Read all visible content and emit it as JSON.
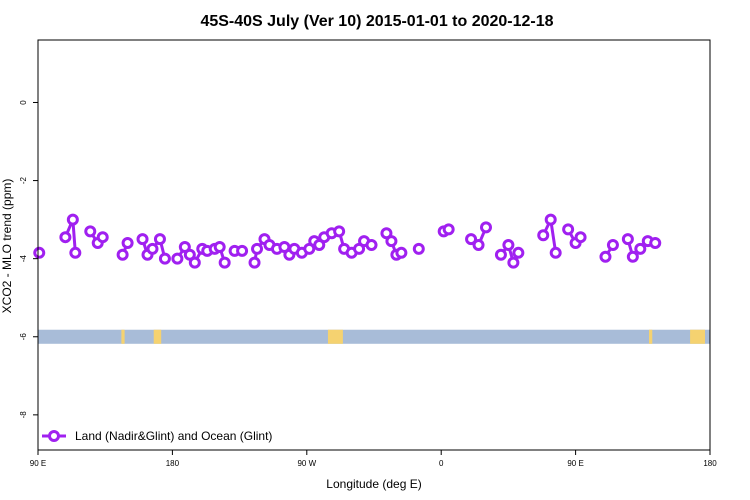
{
  "chart_data": {
    "type": "line",
    "title": "45S-40S July (Ver 10)   2015-01-01 to 2020-12-18",
    "xlabel": "Longitude (deg E)",
    "ylabel": "XCO2 - MLO trend (ppm)",
    "xlim": [
      -90,
      180
    ],
    "ylim": [
      -8.9,
      1.6
    ],
    "x_ticks": [
      -90,
      -36,
      18,
      72,
      126,
      180
    ],
    "x_tick_labels": [
      "90 E",
      "180",
      "90 W",
      "0",
      "90 E",
      "180"
    ],
    "y_ticks": [
      0,
      -2,
      -4,
      -6,
      -8
    ],
    "y_tick_labels": [
      "0",
      "-2",
      "-4",
      "-6",
      "-8"
    ],
    "grid": false,
    "legend": {
      "position": "bottom-left",
      "entries": [
        "Land (Nadir&Glint) and Ocean (Glint)"
      ]
    },
    "colors": {
      "series": "#a020f0",
      "ocean": "#a8bcd8",
      "land": "#f5d270"
    },
    "series": [
      {
        "name": "Land (Nadir&Glint) and Ocean (Glint)",
        "segments": [
          [
            [
              -89.5,
              -3.85
            ]
          ],
          [
            [
              -79,
              -3.45
            ],
            [
              -76,
              -3.0
            ],
            [
              -75,
              -3.85
            ]
          ],
          [
            [
              -69,
              -3.3
            ],
            [
              -66,
              -3.6
            ],
            [
              -64,
              -3.45
            ]
          ],
          [
            [
              -56,
              -3.9
            ],
            [
              -54,
              -3.6
            ]
          ],
          [
            [
              -48,
              -3.5
            ],
            [
              -46,
              -3.9
            ],
            [
              -44,
              -3.75
            ],
            [
              -41,
              -3.5
            ],
            [
              -39,
              -4.0
            ]
          ],
          [
            [
              -34,
              -4.0
            ],
            [
              -31,
              -3.7
            ],
            [
              -29,
              -3.9
            ],
            [
              -27,
              -4.1
            ],
            [
              -24,
              -3.75
            ],
            [
              -22,
              -3.8
            ],
            [
              -19,
              -3.75
            ],
            [
              -17,
              -3.7
            ],
            [
              -15,
              -4.1
            ]
          ],
          [
            [
              -11,
              -3.8
            ],
            [
              -8,
              -3.8
            ]
          ],
          [
            [
              -3,
              -4.1
            ],
            [
              -2,
              -3.75
            ],
            [
              1,
              -3.5
            ],
            [
              3,
              -3.65
            ],
            [
              6,
              -3.75
            ],
            [
              9,
              -3.7
            ],
            [
              11,
              -3.9
            ],
            [
              13,
              -3.75
            ],
            [
              16,
              -3.85
            ],
            [
              19,
              -3.75
            ],
            [
              21,
              -3.55
            ],
            [
              23,
              -3.65
            ],
            [
              25,
              -3.45
            ],
            [
              28,
              -3.35
            ],
            [
              31,
              -3.3
            ],
            [
              33,
              -3.75
            ],
            [
              36,
              -3.85
            ],
            [
              39,
              -3.75
            ],
            [
              41,
              -3.55
            ],
            [
              44,
              -3.65
            ]
          ],
          [
            [
              50,
              -3.35
            ],
            [
              52,
              -3.55
            ],
            [
              54,
              -3.9
            ],
            [
              56,
              -3.85
            ]
          ],
          [
            [
              63,
              -3.75
            ]
          ],
          [
            [
              73,
              -3.3
            ],
            [
              75,
              -3.25
            ]
          ],
          [
            [
              84,
              -3.5
            ],
            [
              87,
              -3.65
            ],
            [
              90,
              -3.2
            ]
          ],
          [
            [
              96,
              -3.9
            ],
            [
              99,
              -3.65
            ],
            [
              101,
              -4.1
            ],
            [
              103,
              -3.85
            ]
          ],
          [
            [
              113,
              -3.4
            ],
            [
              116,
              -3.0
            ],
            [
              118,
              -3.85
            ]
          ],
          [
            [
              123,
              -3.25
            ],
            [
              126,
              -3.6
            ],
            [
              128,
              -3.45
            ]
          ],
          [
            [
              138,
              -3.95
            ],
            [
              141,
              -3.65
            ]
          ],
          [
            [
              147,
              -3.5
            ],
            [
              149,
              -3.95
            ],
            [
              152,
              -3.75
            ],
            [
              155,
              -3.55
            ],
            [
              158,
              -3.6
            ]
          ]
        ]
      }
    ],
    "surface_band": {
      "y_range": [
        -6.18,
        -5.82
      ],
      "land_spans": [
        [
          -56.5,
          -55.2
        ],
        [
          -43.5,
          -40.5
        ],
        [
          26.5,
          32.5
        ],
        [
          155.5,
          156.8
        ],
        [
          172,
          178
        ]
      ]
    }
  }
}
